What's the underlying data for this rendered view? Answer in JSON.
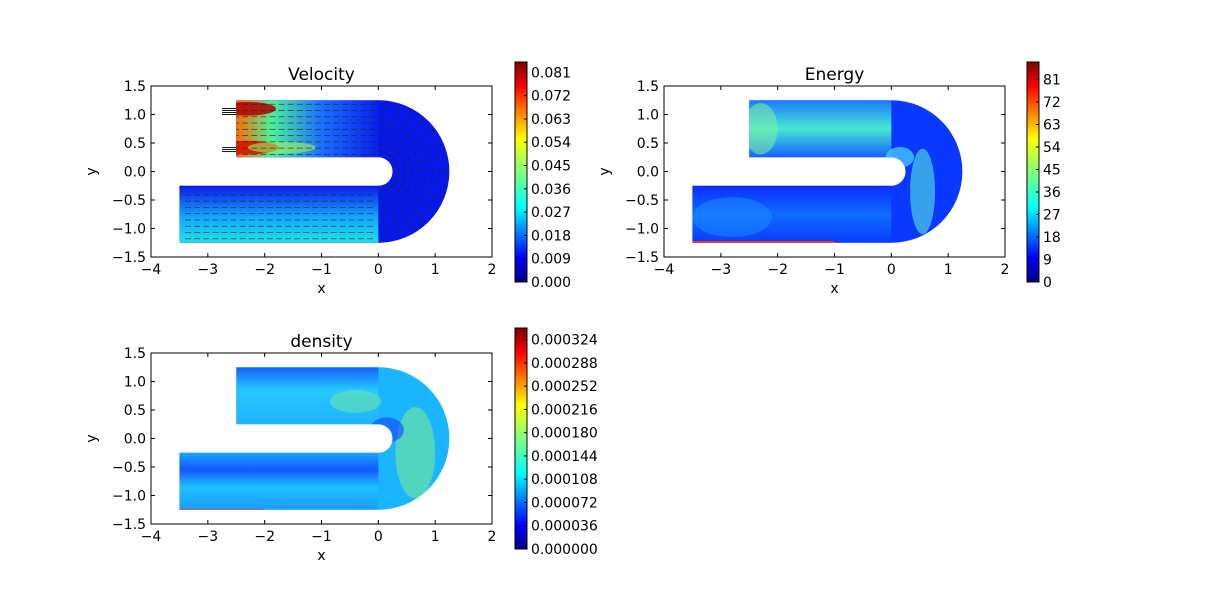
{
  "chart_data": [
    {
      "type": "heatmap",
      "title": "Velocity",
      "xlabel": "x",
      "ylabel": "y",
      "xlim": [
        -4,
        2
      ],
      "ylim": [
        -1.5,
        1.5
      ],
      "xticks": [
        "−4",
        "−3",
        "−2",
        "−1",
        "0",
        "1",
        "2"
      ],
      "yticks": [
        "−1.5",
        "−1.0",
        "−0.5",
        "0.0",
        "0.5",
        "1.0",
        "1.5"
      ],
      "colorbar": {
        "min": 0,
        "max": 0.085,
        "ticks": [
          "0.000",
          "0.009",
          "0.018",
          "0.027",
          "0.036",
          "0.045",
          "0.054",
          "0.063",
          "0.072",
          "0.081"
        ]
      },
      "field": "velocity magnitude with quiver arrows",
      "grid": false
    },
    {
      "type": "heatmap",
      "title": "Energy",
      "xlabel": "x",
      "ylabel": "y",
      "xlim": [
        -4,
        2
      ],
      "ylim": [
        -1.5,
        1.5
      ],
      "xticks": [
        "−4",
        "−3",
        "−2",
        "−1",
        "0",
        "1",
        "2"
      ],
      "yticks": [
        "−1.5",
        "−1.0",
        "−0.5",
        "0.0",
        "0.5",
        "1.0",
        "1.5"
      ],
      "colorbar": {
        "min": 0,
        "max": 88,
        "ticks": [
          "0",
          "9",
          "18",
          "27",
          "36",
          "45",
          "54",
          "63",
          "72",
          "81"
        ]
      },
      "grid": false
    },
    {
      "type": "heatmap",
      "title": "density",
      "xlabel": "x",
      "ylabel": "y",
      "xlim": [
        -4,
        2
      ],
      "ylim": [
        -1.5,
        1.5
      ],
      "xticks": [
        "−4",
        "−3",
        "−2",
        "−1",
        "0",
        "1",
        "2"
      ],
      "yticks": [
        "−1.5",
        "−1.0",
        "−0.5",
        "0.0",
        "0.5",
        "1.0",
        "1.5"
      ],
      "colorbar": {
        "min": 0,
        "max": 0.000342,
        "ticks": [
          "0.000000",
          "0.000036",
          "0.000072",
          "0.000108",
          "0.000144",
          "0.000180",
          "0.000216",
          "0.000252",
          "0.000288",
          "0.000324"
        ]
      },
      "grid": false
    }
  ],
  "colors": {
    "jet_stops": [
      "#00007f",
      "#0000ff",
      "#007fff",
      "#00ffff",
      "#7fff7f",
      "#ffff00",
      "#ff7f00",
      "#ff0000",
      "#7f0000"
    ]
  }
}
